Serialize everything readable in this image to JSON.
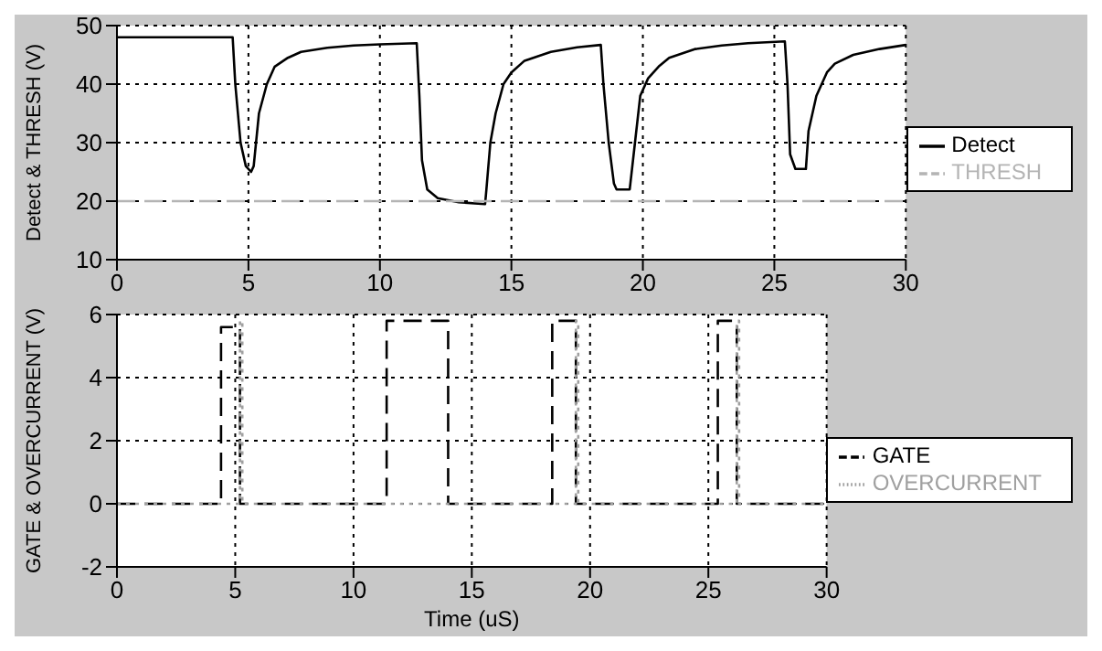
{
  "chart_data": [
    {
      "type": "line",
      "ylabel": "Detect & THRESH (V)",
      "xlim": [
        0,
        30
      ],
      "xticks": [
        0,
        5,
        10,
        15,
        20,
        25,
        30
      ],
      "ylim": [
        10,
        50
      ],
      "yticks": [
        10,
        20,
        30,
        40,
        50
      ],
      "grid": true,
      "legend": "right",
      "marker": "none",
      "series": [
        {
          "name": "Detect",
          "color": "#000000",
          "line_style": "solid",
          "x": [
            0,
            4.4,
            4.5,
            4.7,
            4.9,
            5.1,
            5.2,
            5.4,
            5.7,
            6,
            6.5,
            7,
            8,
            9,
            10,
            11.4,
            11.5,
            11.6,
            11.8,
            12.2,
            13,
            14,
            14.05,
            14.2,
            14.4,
            14.7,
            15,
            15.5,
            16.5,
            17.5,
            18.4,
            18.5,
            18.7,
            18.9,
            19,
            19.5,
            19.7,
            19.9,
            20.2,
            20.6,
            21,
            22,
            23,
            24,
            25.4,
            25.5,
            25.6,
            25.8,
            26.2,
            26.3,
            26.6,
            27,
            27.3,
            28,
            29,
            30
          ],
          "values": [
            48,
            48,
            40,
            30,
            26,
            25,
            26,
            35,
            40,
            43,
            44.5,
            45.5,
            46.2,
            46.6,
            46.8,
            47,
            38,
            27,
            22,
            20.5,
            19.8,
            19.5,
            22,
            30,
            35,
            40,
            42,
            44,
            45.5,
            46.3,
            46.7,
            40,
            30,
            23,
            22,
            22,
            30,
            38,
            41,
            43,
            44.5,
            46,
            46.6,
            47,
            47.3,
            40,
            28,
            25.5,
            25.5,
            32,
            38,
            42,
            43.5,
            45,
            46,
            46.7
          ]
        },
        {
          "name": "THRESH",
          "color": "#b4b4b4",
          "line_style": "dashed",
          "x": [
            0,
            30
          ],
          "values": [
            20,
            20
          ]
        }
      ]
    },
    {
      "type": "line",
      "xlabel": "Time (uS)",
      "ylabel": "GATE & OVERCURRENT (V)",
      "xlim": [
        0,
        30
      ],
      "xticks": [
        0,
        5,
        10,
        15,
        20,
        25,
        30
      ],
      "ylim": [
        -2,
        6
      ],
      "yticks": [
        -2,
        0,
        2,
        4,
        6
      ],
      "grid": true,
      "legend": "right",
      "marker": "none",
      "series": [
        {
          "name": "GATE",
          "color": "#000000",
          "line_style": "dashed",
          "x": [
            0,
            4.4,
            4.4,
            5.2,
            5.2,
            11.4,
            11.4,
            14,
            14,
            18.4,
            18.4,
            19.4,
            19.4,
            25.4,
            25.4,
            26.2,
            26.2,
            30
          ],
          "values": [
            0,
            0,
            5.6,
            5.6,
            0,
            0,
            5.8,
            5.8,
            0,
            0,
            5.8,
            5.8,
            0,
            0,
            5.8,
            5.8,
            0,
            0
          ]
        },
        {
          "name": "OVERCURRENT",
          "color": "#a0a0a0",
          "line_style": "dotted",
          "x": [
            0,
            5.2,
            5.2,
            5.3,
            5.3,
            19.4,
            19.4,
            19.5,
            19.5,
            26.2,
            26.2,
            26.3,
            26.3,
            30
          ],
          "values": [
            0,
            0,
            5.8,
            5.8,
            0,
            0,
            5.8,
            5.8,
            0,
            0,
            5.8,
            5.8,
            0,
            0
          ]
        }
      ]
    }
  ]
}
